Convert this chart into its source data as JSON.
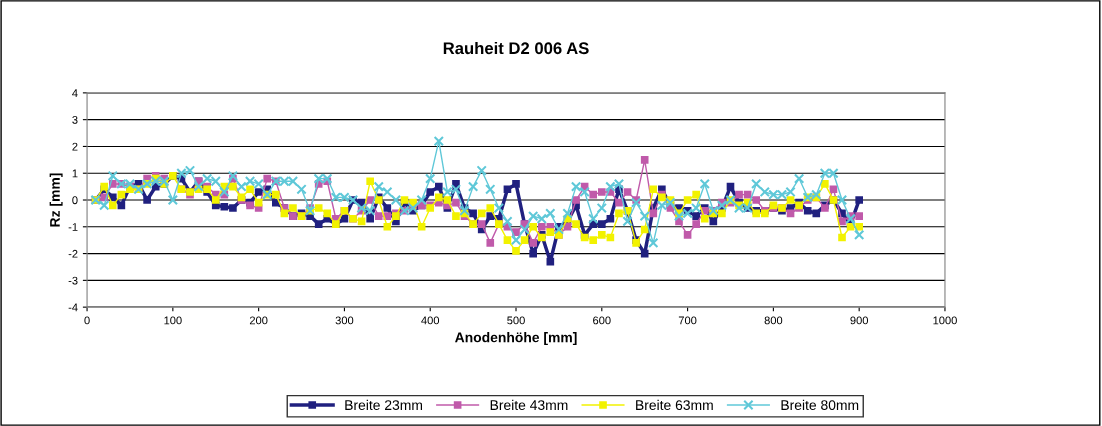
{
  "chart_data": {
    "type": "line",
    "title": "Rauheit D2 006 AS",
    "xlabel": "Anodenhöhe [mm]",
    "ylabel": "Rz [mm]",
    "x": [
      10,
      20,
      30,
      40,
      50,
      60,
      70,
      80,
      90,
      100,
      110,
      120,
      130,
      140,
      150,
      160,
      170,
      180,
      190,
      200,
      210,
      220,
      230,
      240,
      250,
      260,
      270,
      280,
      290,
      300,
      310,
      320,
      330,
      340,
      350,
      360,
      370,
      380,
      390,
      400,
      410,
      420,
      430,
      440,
      450,
      460,
      470,
      480,
      490,
      500,
      510,
      520,
      530,
      540,
      550,
      560,
      570,
      580,
      590,
      600,
      610,
      620,
      630,
      640,
      650,
      660,
      670,
      680,
      690,
      700,
      710,
      720,
      730,
      740,
      750,
      760,
      770,
      780,
      790,
      800,
      810,
      820,
      830,
      840,
      850,
      860,
      870,
      880,
      890,
      900
    ],
    "series": [
      {
        "name": "Breite 23mm",
        "color": "#20207f",
        "marker": "square",
        "values": [
          0,
          0.4,
          0.1,
          -0.2,
          0.5,
          0.6,
          0.0,
          0.5,
          0.6,
          0.9,
          0.8,
          0.3,
          0.7,
          0.3,
          -0.2,
          -0.25,
          -0.3,
          0.0,
          -0.1,
          0.3,
          0.4,
          -0.1,
          -0.3,
          -0.6,
          -0.5,
          -0.6,
          -0.9,
          -0.7,
          -0.9,
          -0.7,
          0.0,
          -0.1,
          -0.7,
          0.1,
          -0.3,
          -0.8,
          -0.1,
          -0.4,
          -0.2,
          0.3,
          0.5,
          -0.3,
          0.6,
          -0.3,
          -0.5,
          -1.1,
          -0.6,
          -0.7,
          0.4,
          0.6,
          -0.9,
          -2.0,
          -1.3,
          -2.3,
          -1.0,
          -0.8,
          -0.2,
          -1.3,
          -0.9,
          -0.9,
          -0.7,
          0.4,
          -0.4,
          -1.5,
          -2.0,
          -0.3,
          0.4,
          -0.2,
          -0.3,
          -0.4,
          -0.6,
          -0.3,
          -0.8,
          -0.3,
          0.5,
          -0.1,
          -0.3,
          -0.4,
          -0.4,
          -0.3,
          -0.4,
          -0.3,
          -0.1,
          -0.4,
          -0.5,
          -0.2,
          0.0,
          -0.5,
          -0.9,
          0.0
        ]
      },
      {
        "name": "Breite 43mm",
        "color": "#c05aaa",
        "marker": "square",
        "values": [
          0,
          0.1,
          0.6,
          0.6,
          0.5,
          0.4,
          0.8,
          0.9,
          0.8,
          null,
          0.4,
          0.2,
          0.7,
          0.5,
          0.2,
          0.2,
          0.8,
          0.0,
          -0.2,
          -0.3,
          0.8,
          0.7,
          -0.3,
          -0.6,
          -0.6,
          -0.3,
          0.6,
          0.7,
          -0.7,
          -0.4,
          -0.7,
          -0.4,
          0.0,
          -0.6,
          -0.6,
          -0.5,
          -0.4,
          -0.2,
          -0.2,
          -0.2,
          -0.1,
          -0.2,
          -0.1,
          -0.6,
          -0.9,
          -0.9,
          -1.6,
          -0.9,
          -1.0,
          -1.2,
          -0.9,
          -1.6,
          -1.0,
          -1.0,
          -1.3,
          -1.0,
          0.0,
          0.5,
          0.2,
          0.3,
          0.3,
          -0.1,
          0.3,
          0.0,
          1.5,
          -0.5,
          0.2,
          -0.3,
          -0.8,
          -1.3,
          -0.9,
          -0.4,
          -0.4,
          -0.1,
          -0.1,
          0.2,
          0.2,
          0.0,
          -0.4,
          -0.3,
          -0.3,
          -0.5,
          -0.3,
          0.0,
          0.1,
          -0.3,
          0.4,
          -0.8,
          -0.6,
          -0.6
        ]
      },
      {
        "name": "Breite 63mm",
        "color": "#f2f200",
        "marker": "square",
        "values": [
          0,
          0.5,
          -0.2,
          0.2,
          0.4,
          0.4,
          0.6,
          0.8,
          0.6,
          0.9,
          0.4,
          0.3,
          0.4,
          0.4,
          0.0,
          0.5,
          0.5,
          0.1,
          0.4,
          -0.1,
          0.2,
          0.2,
          -0.5,
          -0.3,
          -0.6,
          -0.4,
          -0.3,
          -0.5,
          -0.9,
          -0.4,
          -0.7,
          -0.8,
          0.7,
          0.0,
          -1.0,
          -0.6,
          0.0,
          -0.1,
          -1.0,
          -0.3,
          0.1,
          0.0,
          -0.6,
          -0.5,
          -0.9,
          -0.5,
          -0.3,
          -0.9,
          -1.5,
          -1.9,
          -1.5,
          -1.0,
          -1.4,
          -1.2,
          -1.3,
          -0.7,
          -0.9,
          -1.4,
          -1.5,
          -1.3,
          -1.4,
          -0.5,
          -0.4,
          -1.6,
          -1.1,
          0.4,
          0.1,
          0.0,
          -0.5,
          0.0,
          0.2,
          -0.7,
          -0.5,
          -0.5,
          0.0,
          -0.2,
          -0.1,
          -0.5,
          -0.5,
          -0.2,
          -0.3,
          0.0,
          -0.2,
          0.1,
          0.1,
          0.6,
          0.0,
          -1.4,
          -1.0,
          -1.0
        ]
      },
      {
        "name": "Breite 80mm",
        "color": "#5fc8d8",
        "marker": "cross",
        "values": [
          0,
          -0.2,
          0.9,
          0.6,
          0.6,
          0.4,
          0.6,
          0.7,
          0.7,
          0.0,
          1.0,
          1.1,
          0.5,
          0.8,
          0.7,
          0.3,
          0.9,
          0.5,
          0.7,
          0.6,
          0.2,
          0.7,
          0.7,
          0.7,
          0.4,
          -0.4,
          0.8,
          0.8,
          0.1,
          0.1,
          0.0,
          -0.3,
          -0.4,
          0.5,
          0.3,
          0.0,
          -0.4,
          -0.3,
          0.0,
          0.8,
          2.2,
          0.3,
          0.4,
          -0.4,
          0.5,
          1.1,
          0.4,
          -0.3,
          -0.8,
          -1.5,
          -1.1,
          -0.6,
          -0.7,
          -0.5,
          -1.1,
          -0.5,
          0.5,
          0.3,
          -0.7,
          -0.3,
          0.5,
          0.6,
          -0.8,
          -0.1,
          -0.6,
          -1.6,
          -0.2,
          -0.1,
          -0.6,
          -0.5,
          -0.3,
          0.6,
          -0.4,
          -0.2,
          0.0,
          -0.3,
          -0.3,
          0.6,
          0.3,
          0.2,
          0.2,
          0.3,
          0.8,
          0.1,
          0.2,
          1.0,
          1.0,
          0.0,
          -0.7,
          -1.3
        ]
      }
    ],
    "xlim": [
      0,
      1000
    ],
    "xticks": [
      0,
      100,
      200,
      300,
      400,
      500,
      600,
      700,
      800,
      900,
      1000
    ],
    "ylim": [
      -4,
      4
    ],
    "yticks": [
      -4,
      -3,
      -2,
      -1,
      0,
      1,
      2,
      3,
      4
    ],
    "grid": "y",
    "legend": "bottom",
    "line_style": "solid"
  }
}
